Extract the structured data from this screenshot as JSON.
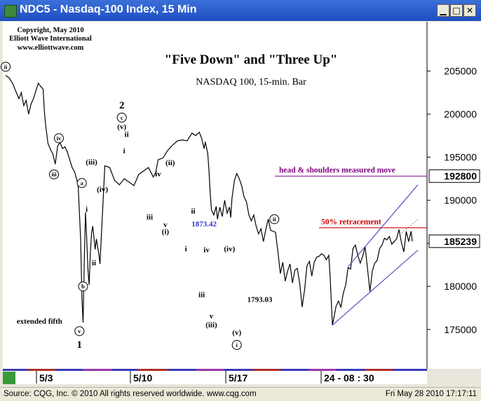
{
  "window": {
    "title": "NDC5 - Nasdaq-100 Index, 15 Min",
    "minimize_icon": "minimize-icon",
    "maximize_icon": "maximize-icon",
    "close_icon": "close-icon"
  },
  "copyright": [
    "Copyright, May 2010",
    "Elliott Wave International",
    "www.elliottwave.com"
  ],
  "status": {
    "left": "Source: CQG, Inc. © 2010 All rights reserved worldwide. www.cqg.com",
    "right": "Fri May 28 2010 17:17:11"
  },
  "chart_data": {
    "type": "line",
    "title": "\"Five Down\" and \"Three Up\"",
    "subtitle": "NASDAQ 100, 15-min. Bar",
    "ylim": [
      171000,
      210000
    ],
    "y_ticks": [
      175000,
      180000,
      185000,
      190000,
      195000,
      200000,
      205000
    ],
    "x_ticks": [
      "5/3",
      "5/10",
      "5/17",
      "24 - 08 : 30"
    ],
    "last_price": 185239,
    "price_line_label": 192800,
    "grid": false,
    "series": [
      {
        "values": [
          [
            0,
            204500
          ],
          [
            3,
            204200
          ],
          [
            6,
            203500
          ],
          [
            8,
            202800
          ],
          [
            11,
            201800
          ],
          [
            13,
            202500
          ],
          [
            15,
            201000
          ],
          [
            17,
            201600
          ],
          [
            19,
            200000
          ],
          [
            21,
            201200
          ],
          [
            23,
            201800
          ],
          [
            25,
            202700
          ],
          [
            27,
            203600
          ],
          [
            29,
            203200
          ],
          [
            31,
            202900
          ],
          [
            32,
            200400
          ],
          [
            33,
            198800
          ],
          [
            35,
            196600
          ],
          [
            37,
            195900
          ],
          [
            39,
            195400
          ],
          [
            41,
            194200
          ],
          [
            43,
            196300
          ],
          [
            45,
            196700
          ],
          [
            47,
            196000
          ],
          [
            49,
            196200
          ],
          [
            51,
            195600
          ],
          [
            53,
            194700
          ],
          [
            55,
            193800
          ],
          [
            57,
            193300
          ],
          [
            59,
            192300
          ],
          [
            60,
            191500
          ],
          [
            62,
            185500
          ],
          [
            63,
            178800
          ],
          [
            64,
            175800
          ],
          [
            65,
            183000
          ],
          [
            66,
            188600
          ],
          [
            67,
            185500
          ],
          [
            68,
            182000
          ],
          [
            69,
            180200
          ],
          [
            70,
            183800
          ],
          [
            71,
            186200
          ],
          [
            72,
            187000
          ],
          [
            73,
            185700
          ],
          [
            74,
            184300
          ],
          [
            75,
            185500
          ],
          [
            76,
            184600
          ],
          [
            77,
            183800
          ],
          [
            78,
            182600
          ],
          [
            82,
            194000
          ],
          [
            86,
            193800
          ],
          [
            90,
            192300
          ],
          [
            94,
            191800
          ],
          [
            98,
            192500
          ],
          [
            102,
            192100
          ],
          [
            106,
            191700
          ],
          [
            110,
            193000
          ],
          [
            114,
            193400
          ],
          [
            118,
            193800
          ],
          [
            122,
            192700
          ],
          [
            124,
            193200
          ],
          [
            126,
            194700
          ],
          [
            130,
            194900
          ],
          [
            134,
            195800
          ],
          [
            138,
            196400
          ],
          [
            142,
            196900
          ],
          [
            146,
            197000
          ],
          [
            150,
            196900
          ],
          [
            154,
            197800
          ],
          [
            157,
            197500
          ],
          [
            160,
            197900
          ],
          [
            162,
            197200
          ],
          [
            164,
            196000
          ],
          [
            165,
            196800
          ],
          [
            167,
            195400
          ],
          [
            168,
            193500
          ],
          [
            169,
            191000
          ],
          [
            170,
            188900
          ],
          [
            172,
            188300
          ],
          [
            174,
            189300
          ],
          [
            175,
            187800
          ],
          [
            177,
            189200
          ],
          [
            179,
            188100
          ],
          [
            181,
            190000
          ],
          [
            183,
            188500
          ],
          [
            185,
            189200
          ],
          [
            186,
            188000
          ],
          [
            187,
            190200
          ],
          [
            189,
            192300
          ],
          [
            191,
            193100
          ],
          [
            193,
            192500
          ],
          [
            195,
            191700
          ],
          [
            197,
            190400
          ],
          [
            199,
            189800
          ],
          [
            201,
            188300
          ],
          [
            203,
            187600
          ],
          [
            205,
            188300
          ],
          [
            207,
            187000
          ],
          [
            209,
            186100
          ],
          [
            211,
            186700
          ],
          [
            213,
            185200
          ],
          [
            215,
            186600
          ],
          [
            217,
            187800
          ],
          [
            219,
            186500
          ],
          [
            221,
            186400
          ],
          [
            223,
            186300
          ],
          [
            225,
            184000
          ],
          [
            227,
            181500
          ],
          [
            229,
            182800
          ],
          [
            231,
            180600
          ],
          [
            233,
            181800
          ],
          [
            235,
            182600
          ],
          [
            237,
            180400
          ],
          [
            239,
            181900
          ],
          [
            241,
            182100
          ],
          [
            243,
            180300
          ],
          [
            245,
            177600
          ],
          [
            247,
            179600
          ],
          [
            249,
            182400
          ],
          [
            251,
            182900
          ],
          [
            253,
            181200
          ],
          [
            255,
            182800
          ],
          [
            257,
            183400
          ],
          [
            259,
            183500
          ],
          [
            261,
            183800
          ],
          [
            263,
            183600
          ],
          [
            265,
            183100
          ],
          [
            267,
            183600
          ],
          [
            268,
            181500
          ],
          [
            270,
            175500
          ],
          [
            271,
            176200
          ],
          [
            273,
            177700
          ],
          [
            275,
            178300
          ],
          [
            277,
            177600
          ],
          [
            279,
            179200
          ],
          [
            281,
            180200
          ],
          [
            283,
            182200
          ],
          [
            285,
            182000
          ],
          [
            287,
            184400
          ],
          [
            289,
            184800
          ],
          [
            291,
            183600
          ],
          [
            293,
            182700
          ],
          [
            295,
            183500
          ],
          [
            297,
            184600
          ],
          [
            299,
            182100
          ],
          [
            301,
            179400
          ],
          [
            303,
            181800
          ],
          [
            305,
            182700
          ],
          [
            307,
            183000
          ],
          [
            309,
            184400
          ],
          [
            311,
            184800
          ],
          [
            313,
            185600
          ],
          [
            315,
            185400
          ],
          [
            317,
            185800
          ],
          [
            319,
            184900
          ],
          [
            321,
            185200
          ],
          [
            323,
            185500
          ],
          [
            325,
            186600
          ],
          [
            327,
            185100
          ],
          [
            329,
            184000
          ],
          [
            331,
            186400
          ],
          [
            333,
            185200
          ],
          [
            335,
            186400
          ],
          [
            336,
            185239
          ]
        ]
      }
    ],
    "wave_labels": [
      {
        "text": "ii",
        "x": 0,
        "y": 205500,
        "circled": true
      },
      {
        "text": "iv",
        "x": 44,
        "y": 197200,
        "circled": true
      },
      {
        "text": "iii",
        "x": 40,
        "y": 193000,
        "circled": true
      },
      {
        "text": "a",
        "x": 63,
        "y": 192000,
        "circled": true
      },
      {
        "text": "i",
        "x": 67,
        "y": 189000,
        "circled": false
      },
      {
        "text": "ii",
        "x": 73,
        "y": 182800,
        "circled": false
      },
      {
        "text": "b",
        "x": 64,
        "y": 180000,
        "circled": true
      },
      {
        "text": "extended fifth",
        "x": 28,
        "y": 176000,
        "circled": false
      },
      {
        "text": "v",
        "x": 61,
        "y": 174800,
        "circled": true
      },
      {
        "text": "1",
        "x": 61,
        "y": 173200,
        "circled": false,
        "bold": true
      },
      {
        "text": "(iii)",
        "x": 71,
        "y": 194500,
        "circled": false
      },
      {
        "text": "(iv)",
        "x": 80,
        "y": 191300,
        "circled": false
      },
      {
        "text": "2",
        "x": 96,
        "y": 201000,
        "circled": false,
        "bold": true
      },
      {
        "text": "c",
        "x": 96,
        "y": 199600,
        "circled": true
      },
      {
        "text": "(v)",
        "x": 96,
        "y": 198600,
        "circled": false
      },
      {
        "text": "ii",
        "x": 100,
        "y": 197700,
        "circled": false
      },
      {
        "text": "i",
        "x": 98,
        "y": 195800,
        "circled": false
      },
      {
        "text": "iv",
        "x": 126,
        "y": 193100,
        "circled": false
      },
      {
        "text": "(ii)",
        "x": 136,
        "y": 194400,
        "circled": false
      },
      {
        "text": "iii",
        "x": 119,
        "y": 188100,
        "circled": false
      },
      {
        "text": "v",
        "x": 132,
        "y": 187200,
        "circled": false
      },
      {
        "text": "(i)",
        "x": 132,
        "y": 186400,
        "circled": false
      },
      {
        "text": "ii",
        "x": 155,
        "y": 188800,
        "circled": false
      },
      {
        "text": "1873.42",
        "x": 164,
        "y": 187300,
        "circled": false,
        "color": "#3333cc"
      },
      {
        "text": "i",
        "x": 149,
        "y": 184400,
        "circled": false
      },
      {
        "text": "iv",
        "x": 166,
        "y": 184300,
        "circled": false
      },
      {
        "text": "(iv)",
        "x": 185,
        "y": 184400,
        "circled": false
      },
      {
        "text": "iii",
        "x": 162,
        "y": 179100,
        "circled": false
      },
      {
        "text": "v",
        "x": 170,
        "y": 176600,
        "circled": false
      },
      {
        "text": "(iii)",
        "x": 170,
        "y": 175600,
        "circled": false
      },
      {
        "text": "(v)",
        "x": 191,
        "y": 174700,
        "circled": false
      },
      {
        "text": "i",
        "x": 191,
        "y": 173200,
        "circled": true
      },
      {
        "text": "1793.03",
        "x": 210,
        "y": 178500,
        "circled": false
      },
      {
        "text": "ii",
        "x": 222,
        "y": 187800,
        "circled": true
      }
    ],
    "annotations": [
      {
        "text": "head & shoulders measured move",
        "y": 192800,
        "color": "#800080"
      },
      {
        "text": "50% retracement",
        "y": 186800,
        "color": "#cc0000"
      }
    ]
  }
}
